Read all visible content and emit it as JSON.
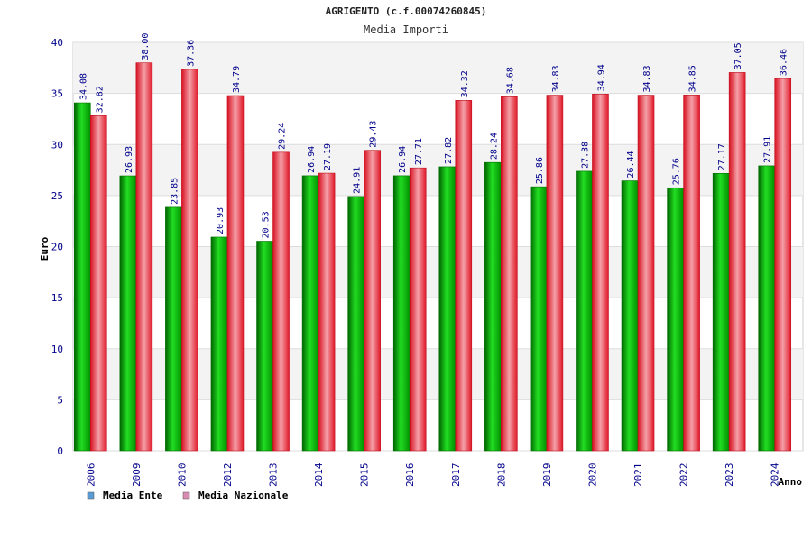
{
  "chart_data": {
    "type": "bar",
    "title": "AGRIGENTO (c.f.00074260845)",
    "subtitle": "Media Importi",
    "xlabel": "Anno",
    "ylabel": "Euro",
    "ylim": [
      0,
      40
    ],
    "yticks": [
      0,
      5,
      10,
      15,
      20,
      25,
      30,
      35,
      40
    ],
    "grid": true,
    "legend_position": "bottom-left",
    "categories": [
      "2006",
      "2009",
      "2010",
      "2012",
      "2013",
      "2014",
      "2015",
      "2016",
      "2017",
      "2018",
      "2019",
      "2020",
      "2021",
      "2022",
      "2023",
      "2024"
    ],
    "series": [
      {
        "name": "Media Ente",
        "color": "#00b000",
        "legend_color": "#5b9bd5",
        "values": [
          34.08,
          26.93,
          23.85,
          20.93,
          20.53,
          26.94,
          24.91,
          26.94,
          27.82,
          28.24,
          25.86,
          27.38,
          26.44,
          25.76,
          27.17,
          27.91
        ]
      },
      {
        "name": "Media Nazionale",
        "color": "#e8202a",
        "legend_color": "#d98cb3",
        "values": [
          32.82,
          38.0,
          37.36,
          34.79,
          29.24,
          27.19,
          29.43,
          27.71,
          34.32,
          34.68,
          34.83,
          34.94,
          34.83,
          34.85,
          37.05,
          36.46
        ]
      }
    ],
    "data_labels": [
      [
        "34.08",
        "26.93",
        "23.85",
        "20.93",
        "20.53",
        "26.94",
        "24.91",
        "26.94",
        "27.82",
        "28.24",
        "25.86",
        "27.38",
        "26.44",
        "25.76",
        "27.17",
        "27.91"
      ],
      [
        "32.82",
        "38.00",
        "37.36",
        "34.79",
        "29.24",
        "27.19",
        "29.43",
        "27.71",
        "34.32",
        "34.68",
        "34.83",
        "34.94",
        "34.83",
        "34.85",
        "37.05",
        "36.46"
      ]
    ]
  }
}
